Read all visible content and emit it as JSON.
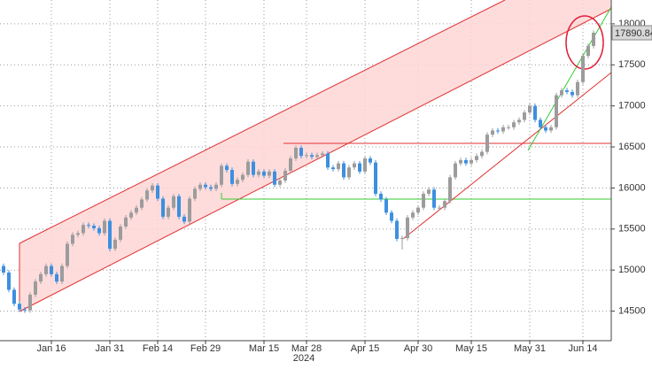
{
  "chart_data": {
    "type": "candlestick",
    "categories": [
      null,
      null,
      null,
      null,
      null,
      null,
      null,
      null,
      null,
      "Jan 16",
      null,
      null,
      null,
      null,
      null,
      null,
      null,
      null,
      null,
      null,
      "Jan 31",
      null,
      null,
      null,
      null,
      null,
      null,
      null,
      null,
      "Feb 14",
      null,
      null,
      null,
      null,
      null,
      null,
      null,
      null,
      "Feb 29",
      null,
      null,
      null,
      null,
      null,
      null,
      null,
      null,
      null,
      null,
      "Mar 15",
      null,
      null,
      null,
      null,
      null,
      null,
      null,
      "Mar 28",
      null,
      null,
      null,
      null,
      null,
      null,
      null,
      null,
      null,
      null,
      "Apr 15",
      null,
      null,
      null,
      null,
      null,
      null,
      null,
      null,
      null,
      "Apr 30",
      null,
      null,
      null,
      null,
      null,
      null,
      null,
      null,
      null,
      "May 15",
      null,
      null,
      null,
      null,
      null,
      null,
      null,
      null,
      null,
      null,
      "May 31",
      null,
      null,
      null,
      null,
      null,
      null,
      null,
      null,
      null,
      "Jun 14",
      null,
      null
    ],
    "year_label": "2024",
    "ohlc": [
      [
        15050,
        15080,
        14940,
        14970
      ],
      [
        14970,
        15000,
        14730,
        14760
      ],
      [
        14760,
        14790,
        14560,
        14590
      ],
      [
        14590,
        14620,
        14490,
        14520
      ],
      [
        14520,
        14550,
        14480,
        14510
      ],
      [
        14510,
        14730,
        14480,
        14700
      ],
      [
        14700,
        14890,
        14670,
        14860
      ],
      [
        14860,
        14980,
        14830,
        14950
      ],
      [
        14950,
        15080,
        14920,
        15050
      ],
      [
        15050,
        15080,
        14920,
        14950
      ],
      [
        14950,
        14980,
        14830,
        14860
      ],
      [
        14860,
        15080,
        14830,
        15050
      ],
      [
        15050,
        15350,
        15020,
        15320
      ],
      [
        15320,
        15460,
        15290,
        15430
      ],
      [
        15430,
        15480,
        15400,
        15450
      ],
      [
        15450,
        15580,
        15420,
        15550
      ],
      [
        15550,
        15580,
        15510,
        15540
      ],
      [
        15540,
        15570,
        15480,
        15510
      ],
      [
        15510,
        15540,
        15420,
        15450
      ],
      [
        15450,
        15630,
        15420,
        15600
      ],
      [
        15600,
        15630,
        15230,
        15260
      ],
      [
        15260,
        15400,
        15230,
        15370
      ],
      [
        15370,
        15560,
        15340,
        15530
      ],
      [
        15530,
        15670,
        15500,
        15640
      ],
      [
        15640,
        15730,
        15610,
        15700
      ],
      [
        15700,
        15790,
        15670,
        15760
      ],
      [
        15760,
        15890,
        15730,
        15860
      ],
      [
        15860,
        16000,
        15830,
        15970
      ],
      [
        15970,
        16060,
        15940,
        16030
      ],
      [
        16030,
        16060,
        15840,
        15870
      ],
      [
        15870,
        15900,
        15620,
        15650
      ],
      [
        15650,
        15790,
        15620,
        15760
      ],
      [
        15760,
        15930,
        15730,
        15900
      ],
      [
        15900,
        15930,
        15620,
        15650
      ],
      [
        15650,
        15680,
        15560,
        15590
      ],
      [
        15590,
        15900,
        15560,
        15870
      ],
      [
        15870,
        16020,
        15840,
        15990
      ],
      [
        15990,
        16070,
        15960,
        16040
      ],
      [
        16040,
        16070,
        15980,
        16010
      ],
      [
        16010,
        16040,
        15960,
        15990
      ],
      [
        15990,
        16070,
        15960,
        16040
      ],
      [
        16040,
        16300,
        16010,
        16270
      ],
      [
        16270,
        16300,
        16190,
        16220
      ],
      [
        16220,
        16250,
        16020,
        16050
      ],
      [
        16050,
        16130,
        16020,
        16100
      ],
      [
        16100,
        16190,
        16070,
        16160
      ],
      [
        16160,
        16350,
        16130,
        16320
      ],
      [
        16320,
        16350,
        16130,
        16160
      ],
      [
        16160,
        16230,
        16130,
        16200
      ],
      [
        16200,
        16230,
        16120,
        16150
      ],
      [
        16150,
        16230,
        16120,
        16200
      ],
      [
        16200,
        16230,
        16010,
        16040
      ],
      [
        16040,
        16120,
        16010,
        16090
      ],
      [
        16090,
        16240,
        16060,
        16210
      ],
      [
        16210,
        16390,
        16180,
        16360
      ],
      [
        16360,
        16520,
        16330,
        16490
      ],
      [
        16490,
        16520,
        16360,
        16390
      ],
      [
        16390,
        16430,
        16360,
        16400
      ],
      [
        16400,
        16430,
        16350,
        16380
      ],
      [
        16380,
        16430,
        16350,
        16400
      ],
      [
        16400,
        16450,
        16370,
        16420
      ],
      [
        16420,
        16450,
        16220,
        16250
      ],
      [
        16250,
        16280,
        16200,
        16230
      ],
      [
        16230,
        16330,
        16200,
        16300
      ],
      [
        16300,
        16330,
        16100,
        16130
      ],
      [
        16130,
        16280,
        16100,
        16250
      ],
      [
        16250,
        16330,
        16220,
        16300
      ],
      [
        16300,
        16330,
        16170,
        16200
      ],
      [
        16200,
        16390,
        16170,
        16360
      ],
      [
        16360,
        16390,
        16280,
        16310
      ],
      [
        16310,
        16340,
        15900,
        15930
      ],
      [
        15930,
        15960,
        15830,
        15860
      ],
      [
        15860,
        15890,
        15670,
        15700
      ],
      [
        15700,
        15730,
        15570,
        15600
      ],
      [
        15600,
        15630,
        15350,
        15380
      ],
      [
        15380,
        15420,
        15250,
        15390
      ],
      [
        15390,
        15670,
        15360,
        15640
      ],
      [
        15640,
        15730,
        15610,
        15700
      ],
      [
        15700,
        15790,
        15670,
        15760
      ],
      [
        15760,
        15960,
        15730,
        15930
      ],
      [
        15930,
        16010,
        15900,
        15980
      ],
      [
        15980,
        16010,
        15730,
        15760
      ],
      [
        15760,
        15790,
        15730,
        15760
      ],
      [
        15760,
        15870,
        15730,
        15840
      ],
      [
        15840,
        16160,
        15810,
        16130
      ],
      [
        16130,
        16330,
        16100,
        16300
      ],
      [
        16300,
        16370,
        16270,
        16340
      ],
      [
        16340,
        16370,
        16270,
        16300
      ],
      [
        16300,
        16370,
        16270,
        16340
      ],
      [
        16340,
        16420,
        16310,
        16390
      ],
      [
        16390,
        16470,
        16360,
        16440
      ],
      [
        16440,
        16680,
        16410,
        16650
      ],
      [
        16650,
        16730,
        16620,
        16700
      ],
      [
        16700,
        16730,
        16660,
        16690
      ],
      [
        16690,
        16770,
        16660,
        16740
      ],
      [
        16740,
        16770,
        16710,
        16740
      ],
      [
        16740,
        16830,
        16710,
        16800
      ],
      [
        16800,
        16860,
        16770,
        16830
      ],
      [
        16830,
        16950,
        16800,
        16920
      ],
      [
        16920,
        17030,
        16890,
        17000
      ],
      [
        17000,
        17030,
        16800,
        16830
      ],
      [
        16830,
        16860,
        16710,
        16740
      ],
      [
        16740,
        16770,
        16670,
        16700
      ],
      [
        16700,
        16770,
        16670,
        16740
      ],
      [
        16740,
        17160,
        16710,
        17130
      ],
      [
        17130,
        17220,
        17100,
        17190
      ],
      [
        17190,
        17220,
        17140,
        17170
      ],
      [
        17170,
        17200,
        17100,
        17130
      ],
      [
        17130,
        17320,
        17100,
        17290
      ],
      [
        17290,
        17640,
        17260,
        17610
      ],
      [
        17610,
        17760,
        17580,
        17730
      ],
      [
        17730,
        17920,
        17700,
        17890.84
      ]
    ],
    "up_color": "#9c9c9c",
    "down_color": "#3d8fe0",
    "ylim": [
      14140,
      18290
    ],
    "yticks": [
      14500,
      15000,
      15500,
      16000,
      16500,
      17000,
      17500,
      18000
    ],
    "grid": true
  }
}
